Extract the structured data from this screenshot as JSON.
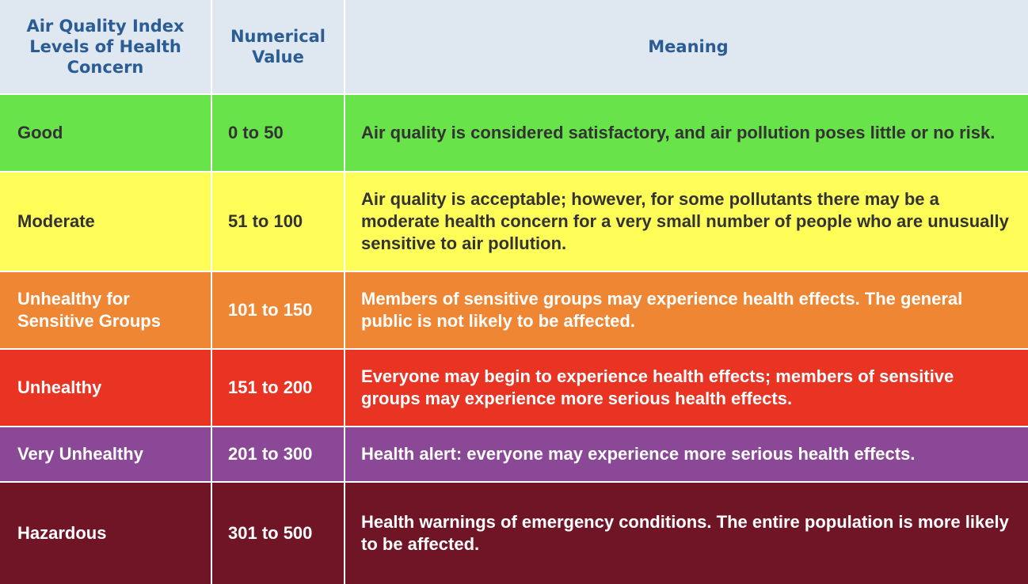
{
  "header": {
    "level": "Air Quality Index Levels of Health Concern",
    "value": "Numerical Value",
    "meaning": "Meaning"
  },
  "rows": [
    {
      "level": "Good",
      "value": "0 to 50",
      "meaning": "Air quality is considered satisfactory, and air pollution poses little or no risk.",
      "color": "#68e34a",
      "text_color": "#333333"
    },
    {
      "level": "Moderate",
      "value": "51 to 100",
      "meaning": "Air quality is acceptable; however, for some pollutants there may be a moderate health concern for a very small number of people who are unusually sensitive to air pollution.",
      "color": "#fffe58",
      "text_color": "#333333"
    },
    {
      "level": "Unhealthy for Sensitive Groups",
      "value": "101 to 150",
      "meaning": "Members of sensitive groups may experience health effects. The general public is not likely to be affected.",
      "color": "#ef8634",
      "text_color": "#ffffff"
    },
    {
      "level": "Unhealthy",
      "value": "151 to 200",
      "meaning": "Everyone may begin to experience health effects; members of sensitive groups may experience more serious health effects.",
      "color": "#e93424",
      "text_color": "#ffffff"
    },
    {
      "level": "Very Unhealthy",
      "value": "201 to 300",
      "meaning": "Health alert: everyone may experience more serious health effects.",
      "color": "#8b4896",
      "text_color": "#ffffff"
    },
    {
      "level": "Hazardous",
      "value": "301 to 500",
      "meaning": "Health warnings of emergency conditions. The entire population is more likely to be affected.",
      "color": "#701525",
      "text_color": "#ffffff"
    }
  ],
  "colors": {
    "header_bg": "#dfe8f1",
    "header_text": "#2b5c94",
    "border": "#ffffff"
  }
}
